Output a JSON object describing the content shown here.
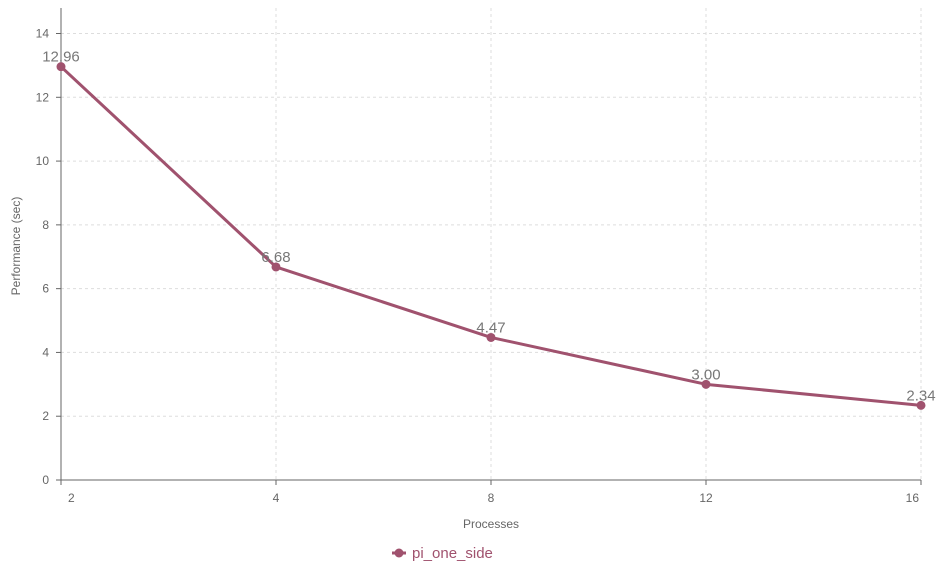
{
  "chart_data": {
    "type": "line",
    "categories": [
      "2",
      "4",
      "8",
      "12",
      "16"
    ],
    "series": [
      {
        "name": "pi_one_side",
        "values": [
          12.96,
          6.68,
          4.47,
          3.0,
          2.34
        ],
        "labels": [
          "12.96",
          "6.68",
          "4.47",
          "3.00",
          "2.34"
        ],
        "color": "#a0526e"
      }
    ],
    "xlabel": "Processes",
    "ylabel": "Performance (sec)",
    "ylim": [
      0,
      14.8
    ],
    "yticks": [
      0,
      2,
      4,
      6,
      8,
      10,
      12,
      14
    ],
    "grid": true,
    "legend_position": "bottom-center"
  }
}
